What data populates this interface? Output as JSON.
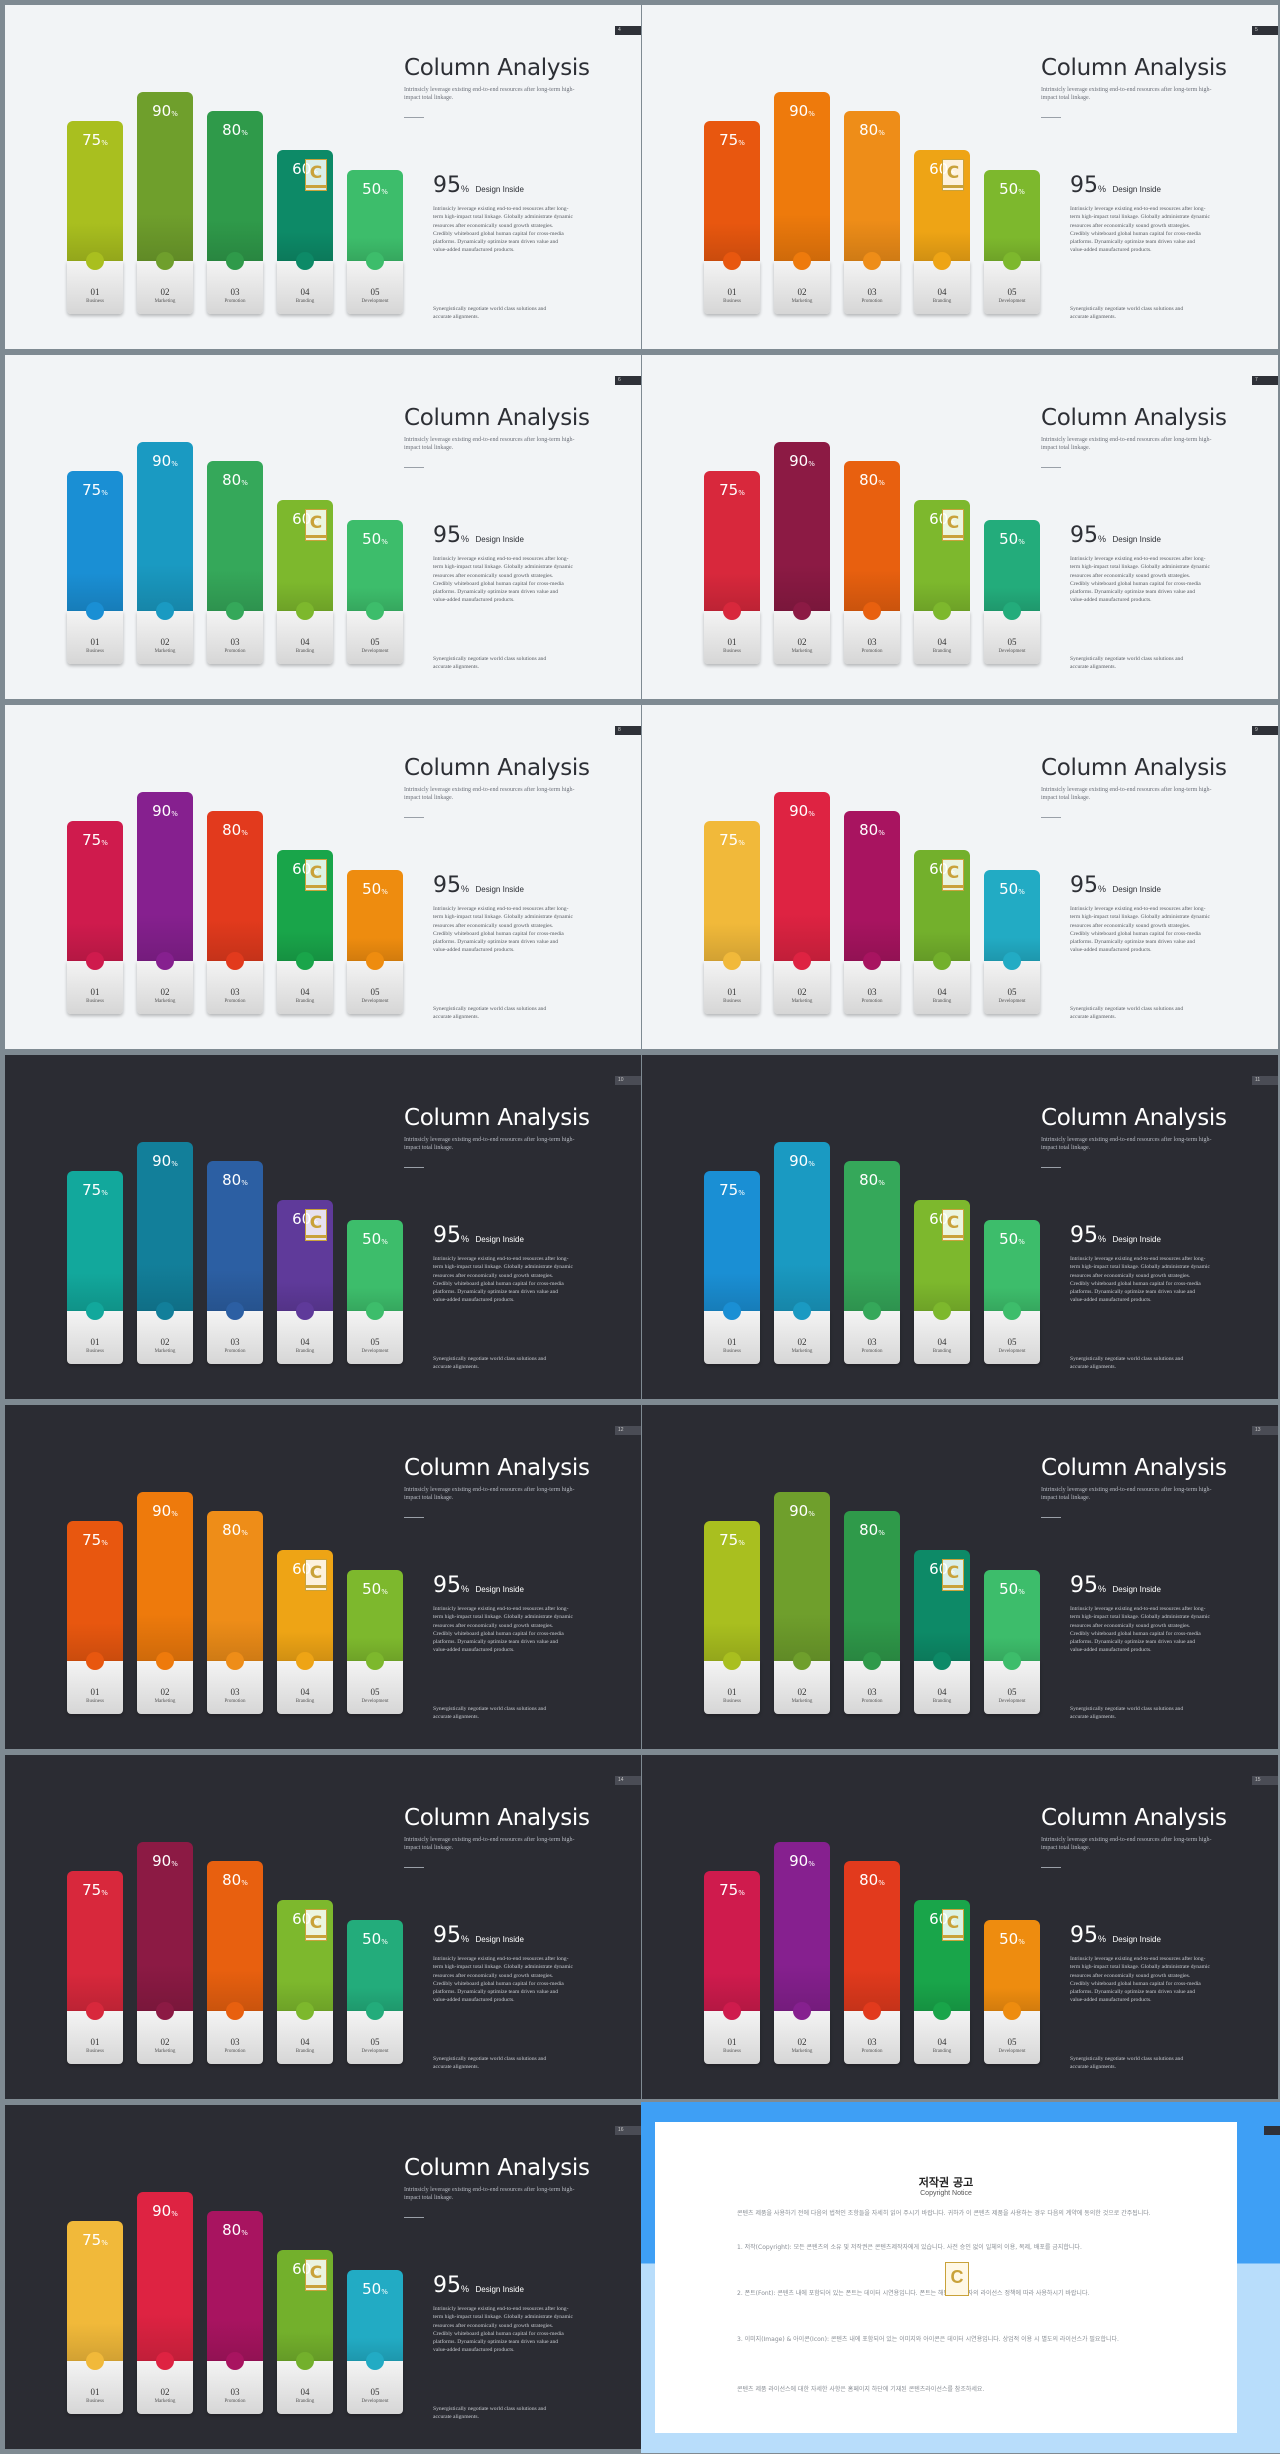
{
  "slide_template": {
    "title": "Column Analysis",
    "subtitle": "Intrinsicly leverage existing end-to-end resources after long-term high-impact total linkage.",
    "stat_value": "95",
    "stat_unit": "%",
    "stat_label": "Design Inside",
    "body": "Intrinsicly leverage existing end-to-end resources after long-term high-impact total linkage. Globally administrate dynamic resources after economically sound growth strategies. Credibly whiteboard global human capital for cross-media platforms. Dynamically optimize team driven value and value-added manufactured products.",
    "footnote": "Synergistically negotiate world class solutions and accurate alignments.",
    "percent_sign": "%",
    "logo_letter": "C"
  },
  "columns": [
    {
      "num": "01",
      "label": "Business",
      "value": 75
    },
    {
      "num": "02",
      "label": "Marketing",
      "value": 90
    },
    {
      "num": "03",
      "label": "Promotion",
      "value": 80
    },
    {
      "num": "04",
      "label": "Branding",
      "value": 60
    },
    {
      "num": "05",
      "label": "Development",
      "value": 50
    }
  ],
  "slides": [
    {
      "page": "4",
      "theme": "light",
      "colors": [
        "#a9bf1f",
        "#6f9f2c",
        "#2f9a4a",
        "#0d8a67",
        "#3dbd6b"
      ]
    },
    {
      "page": "5",
      "theme": "light",
      "colors": [
        "#e8570f",
        "#ee7a0c",
        "#ee8d18",
        "#eea415",
        "#7db82d"
      ]
    },
    {
      "page": "6",
      "theme": "light",
      "colors": [
        "#1a8fd4",
        "#1a9ac2",
        "#35a85a",
        "#7db82d",
        "#3dbd6b"
      ]
    },
    {
      "page": "7",
      "theme": "light",
      "colors": [
        "#d8283c",
        "#8c1a44",
        "#e8600f",
        "#7db82d",
        "#23ac7b"
      ]
    },
    {
      "page": "8",
      "theme": "light",
      "colors": [
        "#cf1b4d",
        "#86208f",
        "#e23a1d",
        "#19a54a",
        "#ee8c0f"
      ]
    },
    {
      "page": "9",
      "theme": "light",
      "colors": [
        "#f1b93a",
        "#de2342",
        "#a81460",
        "#73b02c",
        "#22abc4"
      ]
    },
    {
      "page": "10",
      "theme": "dark",
      "colors": [
        "#12a89c",
        "#127f9a",
        "#2c5fa3",
        "#5f3a9a",
        "#3dbd6b"
      ]
    },
    {
      "page": "11",
      "theme": "dark",
      "colors": [
        "#1a8fd4",
        "#1a9ac2",
        "#35a85a",
        "#7db82d",
        "#3dbd6b"
      ]
    },
    {
      "page": "12",
      "theme": "dark",
      "colors": [
        "#e8570f",
        "#ee7a0c",
        "#ee8d18",
        "#eea415",
        "#7db82d"
      ]
    },
    {
      "page": "13",
      "theme": "dark",
      "colors": [
        "#a9bf1f",
        "#6f9f2c",
        "#2f9a4a",
        "#0d8a67",
        "#3dbd6b"
      ]
    },
    {
      "page": "14",
      "theme": "dark",
      "colors": [
        "#d8283c",
        "#8c1a44",
        "#e8600f",
        "#7db82d",
        "#23ac7b"
      ]
    },
    {
      "page": "15",
      "theme": "dark",
      "colors": [
        "#cf1b4d",
        "#86208f",
        "#e23a1d",
        "#19a54a",
        "#ee8c0f"
      ]
    },
    {
      "page": "16",
      "theme": "dark",
      "colors": [
        "#f1b93a",
        "#de2342",
        "#a81460",
        "#73b02c",
        "#22abc4"
      ]
    }
  ],
  "notice": {
    "title": "저작권 공고",
    "subtitle": "Copyright Notice",
    "paragraphs": [
      "콘텐츠 제품을 사용하기 전에 다음의 법적인 조항들을 자세히 읽어 주시기 바랍니다. 귀하가 이 콘텐츠 제품을 사용하는 경우 다음의 계약에 동의한 것으로 간주됩니다.",
      "1. 저작(Copyright): 모든 콘텐츠의 소유 및 저작권은 콘텐츠제작자에게 있습니다. 사전 승인 없이 일체의 이용, 복제, 배포를 금지합니다.",
      "2. 폰트(Font): 콘텐츠 내에 포함되어 있는 폰트는 데이터 시연용입니다. 폰트는 해당 저작권자의 라이선스 정책에 따라 사용하시기 바랍니다.",
      "3. 이미지(Image) & 아이콘(Icon): 콘텐츠 내에 포함되어 있는 이미지와 아이콘은 데이터 시연용입니다. 상업적 이용 시 별도의 라이선스가 필요합니다.",
      "콘텐츠 제품 라이선스에 대한 자세한 사항은 홈페이지 하단에 기재된 콘텐츠라이선스를 참조하세요."
    ]
  }
}
